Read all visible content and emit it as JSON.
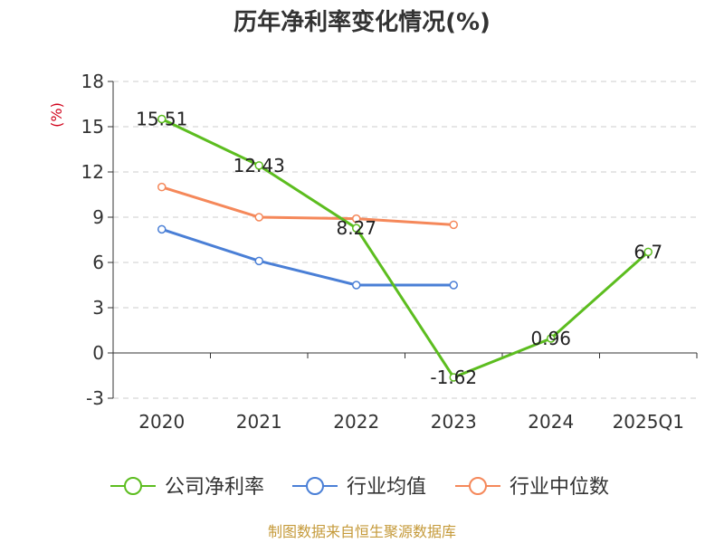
{
  "chart_data": {
    "type": "line",
    "title": "历年净利率变化情况(%)",
    "y_unit": "(%)",
    "categories": [
      "2020",
      "2021",
      "2022",
      "2023",
      "2024",
      "2025Q1"
    ],
    "ylim": [
      -3,
      18
    ],
    "yticks": [
      -3,
      0,
      3,
      6,
      9,
      12,
      15,
      18
    ],
    "grid": true,
    "legend_position": "bottom",
    "series": [
      {
        "name": "公司净利率",
        "color": "#5cbd1f",
        "values": [
          15.51,
          12.43,
          8.27,
          -1.62,
          0.96,
          6.7
        ],
        "labels": [
          "15.51",
          "12.43",
          "8.27",
          "-1.62",
          "0.96",
          "6.7"
        ]
      },
      {
        "name": "行业均值",
        "color": "#4a7fd6",
        "values": [
          8.2,
          6.1,
          4.5,
          4.5,
          null,
          null
        ]
      },
      {
        "name": "行业中位数",
        "color": "#f5885a",
        "values": [
          11.0,
          9.0,
          8.9,
          8.5,
          null,
          null
        ]
      }
    ]
  },
  "source": "制图数据来自恒生聚源数据库"
}
